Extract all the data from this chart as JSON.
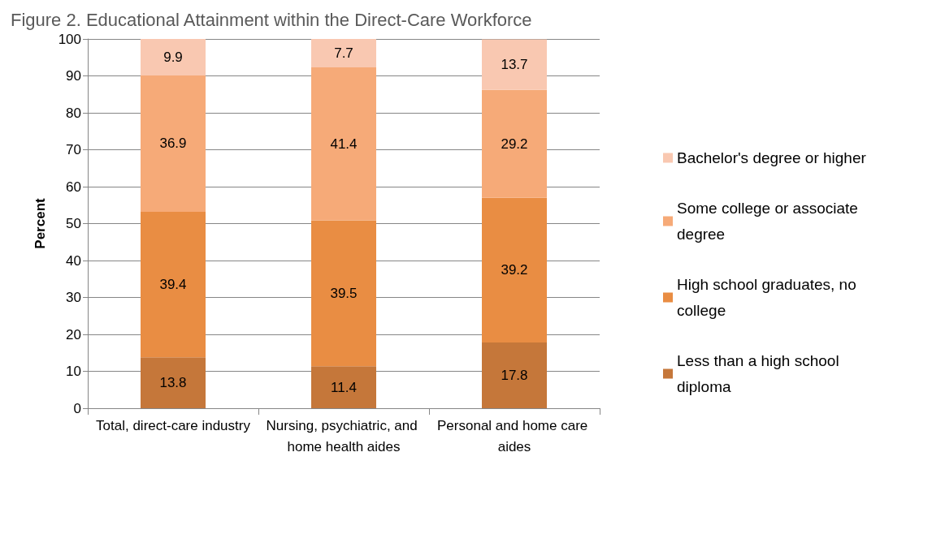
{
  "chart_data": {
    "type": "bar",
    "stacked": true,
    "title": "Figure 2. Educational Attainment within the Direct-Care Workforce",
    "ylabel": "Percent",
    "categories": [
      "Total, direct-care industry",
      "Nursing, psychiatric, and home health aides",
      "Personal and home care aides"
    ],
    "series": [
      {
        "name": "Less than a high school diploma",
        "color": "#c5773a",
        "values": [
          13.8,
          11.4,
          17.8
        ]
      },
      {
        "name": "High school graduates, no college",
        "color": "#e98d43",
        "values": [
          39.4,
          39.5,
          39.2
        ]
      },
      {
        "name": "Some college or associate degree",
        "color": "#f6aa78",
        "values": [
          36.9,
          41.4,
          29.2
        ]
      },
      {
        "name": "Bachelor's degree or higher",
        "color": "#f9c8b1",
        "values": [
          9.9,
          7.7,
          13.7
        ]
      }
    ],
    "ylim": [
      0,
      100
    ],
    "yticks": [
      0,
      10,
      20,
      30,
      40,
      50,
      60,
      70,
      80,
      90,
      100
    ],
    "grid": "y",
    "legend": "right",
    "data_labels": true
  }
}
